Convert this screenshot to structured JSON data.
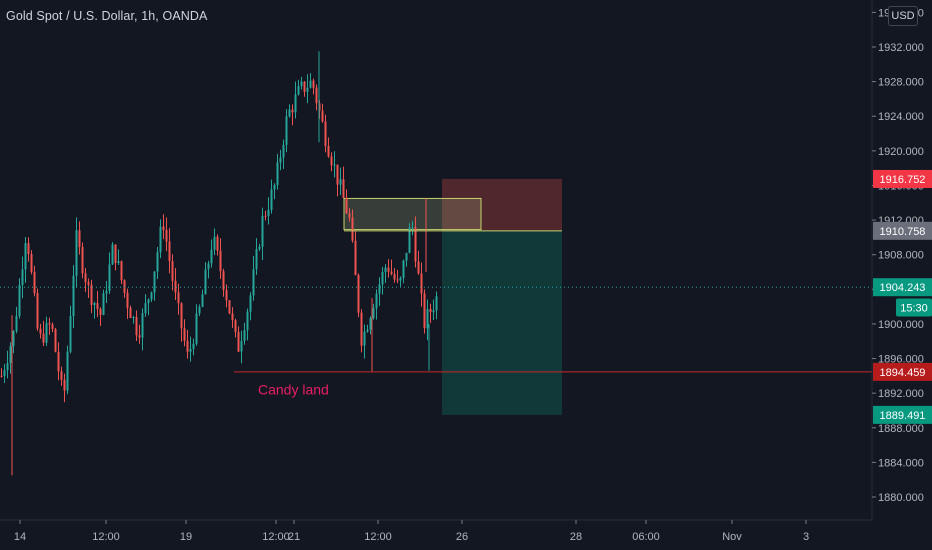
{
  "title": {
    "symbol_name": "Gold Spot / U.S. Dollar, 1h, OANDA"
  },
  "currency_button": "USD",
  "colors": {
    "background": "#131722",
    "up": "#26a69a",
    "down": "#ef5350",
    "axis_text": "#b2b5be",
    "grid": "#1e222d",
    "annotation_text": "#e91e63",
    "horizontal_line": "#c62828",
    "current_price_line": "#26a69a",
    "zone_outline": "#c6d36a",
    "stop_zone": "#5a2a2f",
    "target_zone": "#113b3c"
  },
  "chart_data": {
    "type": "candlestick",
    "title": "Gold Spot / U.S. Dollar, 1h, OANDA",
    "interval": "1h",
    "xlabel": "",
    "ylabel": "",
    "ylim": [
      1877.0,
      1935.5
    ],
    "grid": false,
    "x_ticks": [
      "14",
      "12:00",
      "19",
      "12:00",
      "21",
      "12:00",
      "26",
      "28",
      "06:00",
      "Nov",
      "3"
    ],
    "y_ticks": [
      "1880.000",
      "1884.000",
      "1888.000",
      "1892.000",
      "1896.000",
      "1900.000",
      "1904.000",
      "1908.000",
      "1912.000",
      "1916.000",
      "1920.000",
      "1924.000",
      "1928.000",
      "1932.000",
      "1936.000"
    ],
    "price_series_approx": [
      1894.0,
      1899.0,
      1911.0,
      1898.0,
      1900.0,
      1891.0,
      1910.0,
      1904.0,
      1901.0,
      1909.0,
      1903.0,
      1899.0,
      1904.0,
      1912.0,
      1903.0,
      1896.0,
      1902.0,
      1910.0,
      1904.0,
      1897.0,
      1903.0,
      1912.0,
      1916.0,
      1924.0,
      1927.0,
      1928.0,
      1922.0,
      1917.0,
      1912.0,
      1898.0,
      1903.0,
      1907.0,
      1904.0,
      1912.0,
      1900.0,
      1903.0
    ],
    "price_tags": [
      {
        "label": "1916.752",
        "value": 1916.752,
        "color": "#f23645"
      },
      {
        "label": "1910.758",
        "value": 1910.758,
        "color": "#6b6f7b"
      },
      {
        "label": "1904.243",
        "value": 1904.243,
        "color": "#089981"
      },
      {
        "label": "15:30",
        "value": 1901.9,
        "color": "#089981"
      },
      {
        "label": "1894.459",
        "value": 1894.459,
        "color": "#b71c1c"
      },
      {
        "label": "1889.491",
        "value": 1889.491,
        "color": "#089981"
      }
    ],
    "horizontal_line_price": 1894.459,
    "current_price": 1904.243,
    "annotations": [
      {
        "text": "Candy land",
        "price": 1892.3
      }
    ],
    "zones": [
      {
        "name": "resistance-zone",
        "price_top": 1914.5,
        "price_bottom": 1910.9
      },
      {
        "name": "stop-zone",
        "price_top": 1916.752,
        "price_bottom": 1910.758
      },
      {
        "name": "target-zone",
        "price_top": 1910.758,
        "price_bottom": 1889.491
      }
    ]
  }
}
